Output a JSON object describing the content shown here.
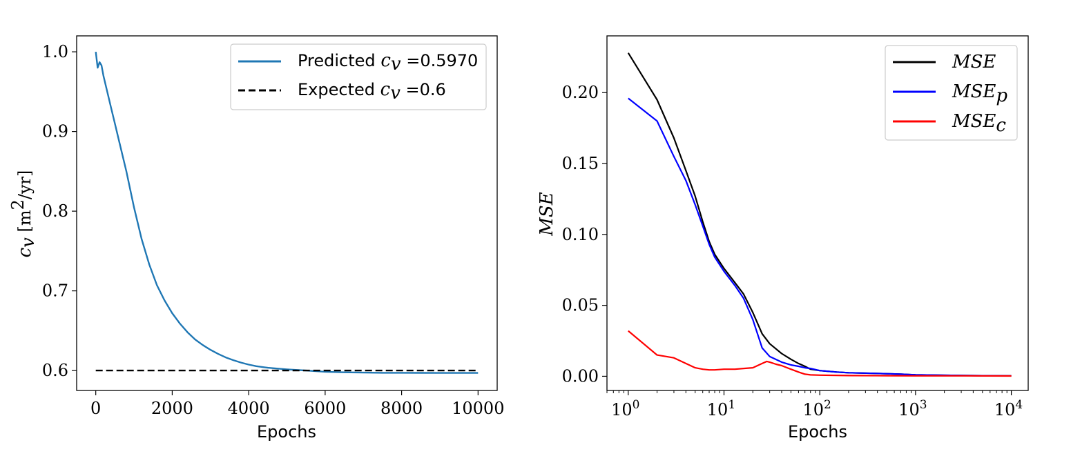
{
  "chart_data": [
    {
      "type": "line",
      "xlabel": "Epochs",
      "ylabel": "c_v [m²/yr]",
      "xlim": [
        -500,
        10500
      ],
      "ylim": [
        0.575,
        1.02
      ],
      "x_ticks": [
        0,
        2000,
        4000,
        6000,
        8000,
        10000
      ],
      "y_ticks": [
        0.6,
        0.7,
        0.8,
        0.9,
        1.0
      ],
      "x_tick_labels": [
        "0",
        "2000",
        "4000",
        "6000",
        "8000",
        "10000"
      ],
      "y_tick_labels": [
        "0.6",
        "0.7",
        "0.8",
        "0.9",
        "1.0"
      ],
      "legend_position": "top-right",
      "series": [
        {
          "name": "Predicted c_v = 0.5970",
          "legend_prefix": "Predicted",
          "legend_var": "c",
          "legend_sub": "v",
          "legend_value": "=0.5970",
          "color": "#1f77b4",
          "style": "solid",
          "x": [
            0,
            50,
            100,
            150,
            200,
            300,
            400,
            500,
            600,
            800,
            1000,
            1200,
            1400,
            1600,
            1800,
            2000,
            2200,
            2400,
            2600,
            2800,
            3000,
            3200,
            3400,
            3600,
            3800,
            4000,
            4200,
            4500,
            5000,
            5500,
            6000,
            6500,
            7000,
            7500,
            8000,
            8500,
            9000,
            9500,
            10000
          ],
          "y": [
            1.0,
            0.98,
            0.987,
            0.983,
            0.97,
            0.95,
            0.93,
            0.91,
            0.89,
            0.85,
            0.805,
            0.765,
            0.733,
            0.707,
            0.688,
            0.672,
            0.659,
            0.648,
            0.639,
            0.632,
            0.626,
            0.621,
            0.6165,
            0.613,
            0.61,
            0.6075,
            0.6055,
            0.6035,
            0.6015,
            0.6,
            0.5985,
            0.5978,
            0.5974,
            0.5972,
            0.5972,
            0.5971,
            0.597,
            0.597,
            0.597
          ]
        },
        {
          "name": "Expected c_v = 0.6",
          "legend_prefix": "Expected",
          "legend_var": "c",
          "legend_sub": "v",
          "legend_value": "=0.6",
          "color": "#000000",
          "style": "dashed",
          "x": [
            0,
            10000
          ],
          "y": [
            0.6,
            0.6
          ]
        }
      ]
    },
    {
      "type": "line",
      "xscale": "log",
      "xlabel": "Epochs",
      "ylabel": "MSE",
      "xlim": [
        0.6,
        15000
      ],
      "ylim": [
        -0.01,
        0.24
      ],
      "x_ticks": [
        1,
        10,
        100,
        1000,
        10000
      ],
      "x_tick_exponents": [
        "0",
        "1",
        "2",
        "3",
        "4"
      ],
      "y_ticks": [
        0,
        0.05,
        0.1,
        0.15,
        0.2
      ],
      "y_tick_labels": [
        "0.00",
        "0.05",
        "0.10",
        "0.15",
        "0.20"
      ],
      "legend_position": "top-right",
      "series": [
        {
          "name": "MSE",
          "legend_sub": "",
          "color": "#000000",
          "x": [
            1,
            2,
            3,
            4,
            5,
            6,
            7,
            8,
            10,
            13,
            16,
            20,
            25,
            30,
            40,
            50,
            60,
            70,
            80,
            100,
            150,
            200,
            400,
            700,
            1000,
            2000,
            5000,
            10000
          ],
          "y": [
            0.228,
            0.195,
            0.168,
            0.145,
            0.127,
            0.109,
            0.095,
            0.086,
            0.076,
            0.066,
            0.058,
            0.045,
            0.03,
            0.023,
            0.016,
            0.012,
            0.009,
            0.007,
            0.005,
            0.004,
            0.003,
            0.0025,
            0.002,
            0.0015,
            0.001,
            0.0007,
            0.0004,
            0.0003
          ]
        },
        {
          "name": "MSE_p",
          "legend_sub": "p",
          "color": "#0000ff",
          "x": [
            1,
            2,
            3,
            4,
            5,
            6,
            7,
            8,
            10,
            13,
            16,
            20,
            25,
            30,
            40,
            50,
            60,
            70,
            80,
            100,
            150,
            200,
            400,
            700,
            1000,
            2000,
            5000,
            10000
          ],
          "y": [
            0.196,
            0.18,
            0.155,
            0.138,
            0.121,
            0.106,
            0.093,
            0.084,
            0.074,
            0.064,
            0.055,
            0.04,
            0.02,
            0.014,
            0.01,
            0.008,
            0.007,
            0.006,
            0.0055,
            0.004,
            0.003,
            0.0025,
            0.002,
            0.0015,
            0.001,
            0.0007,
            0.0004,
            0.0003
          ]
        },
        {
          "name": "MSE_c",
          "legend_sub": "c",
          "color": "#ff0000",
          "x": [
            1,
            2,
            3,
            4,
            5,
            6,
            7,
            8,
            10,
            13,
            16,
            20,
            25,
            28,
            30,
            35,
            40,
            50,
            60,
            70,
            80,
            100,
            200,
            500,
            1000,
            3000,
            10000
          ],
          "y": [
            0.032,
            0.015,
            0.013,
            0.009,
            0.006,
            0.005,
            0.0045,
            0.0045,
            0.005,
            0.005,
            0.0055,
            0.006,
            0.009,
            0.0105,
            0.01,
            0.0085,
            0.0075,
            0.005,
            0.003,
            0.0015,
            0.001,
            0.0008,
            0.0005,
            0.0004,
            0.0003,
            0.0003,
            0.0002
          ]
        }
      ]
    }
  ]
}
